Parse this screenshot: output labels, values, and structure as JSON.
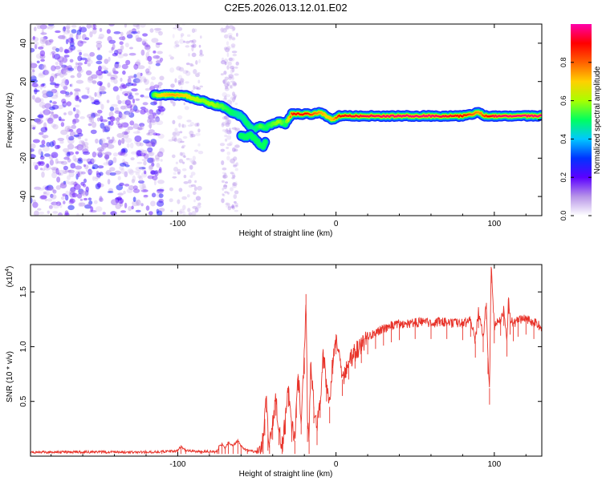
{
  "figure_title": "C2E5.2026.013.12.01.E02",
  "chart_data": [
    {
      "type": "heatmap",
      "title": "C2E5.2026.013.12.01.E02",
      "xlabel": "Height of straight line (km)",
      "ylabel": "Frequency (Hz)",
      "xlim": [
        -193,
        130
      ],
      "ylim": [
        -50,
        50
      ],
      "x_ticks": [
        -100,
        0,
        100
      ],
      "y_ticks": [
        -40,
        -20,
        0,
        20,
        40
      ],
      "x_tick_labels": [
        "-100",
        "0",
        "100"
      ],
      "y_tick_labels": [
        "-40",
        "-20",
        "0",
        "20",
        "40"
      ],
      "colorbar": {
        "label": "Normalized spectral amplitude",
        "range": [
          0,
          1
        ],
        "ticks": [
          0,
          0.2,
          0.4,
          0.6,
          0.8
        ],
        "tick_labels": [
          "0.0",
          "0.2",
          "0.4",
          "0.6",
          "0.8"
        ],
        "colormap": [
          "#ffffff",
          "#b794e8",
          "#5b00ff",
          "#0033ff",
          "#00c8ff",
          "#00ff60",
          "#a8ff00",
          "#ffd000",
          "#ff6000",
          "#ff0000",
          "#ff00aa"
        ]
      },
      "noise_region_x": [
        -193,
        -110
      ],
      "sparse_noise_bands_x": [
        [
          -105,
          -85
        ],
        [
          -72,
          -62
        ]
      ],
      "ridge": {
        "x": [
          -115,
          -110,
          -103,
          -96,
          -90,
          -84,
          -78,
          -72,
          -66,
          -60,
          -56,
          -52,
          -48,
          -44,
          -40,
          -36,
          -32,
          -28,
          -26,
          -22,
          -18,
          -14,
          -10,
          -6,
          -2,
          2,
          8,
          20,
          40,
          60,
          80,
          86,
          90,
          94,
          100,
          110,
          130
        ],
        "y": [
          13,
          13,
          13,
          13,
          11,
          10,
          8,
          7,
          4,
          2,
          -2,
          -5,
          -3,
          -4,
          -2,
          -1,
          -2,
          3,
          3,
          3,
          3,
          3,
          4,
          2,
          0,
          2,
          2,
          2,
          2,
          2,
          2,
          3,
          4,
          2,
          2,
          2,
          2
        ],
        "amp": [
          0.55,
          0.7,
          0.75,
          0.7,
          0.62,
          0.58,
          0.6,
          0.55,
          0.5,
          0.45,
          0.5,
          0.45,
          0.55,
          0.5,
          0.55,
          0.6,
          0.5,
          0.85,
          0.9,
          0.9,
          0.88,
          0.8,
          0.75,
          0.7,
          0.72,
          0.9,
          0.92,
          0.95,
          0.97,
          0.97,
          0.9,
          0.8,
          0.75,
          0.85,
          0.95,
          0.97,
          0.97
        ]
      },
      "ridge_branch": {
        "x": [
          -60,
          -57,
          -54,
          -51,
          -48,
          -46,
          -44
        ],
        "y": [
          -8,
          -9,
          -8,
          -10,
          -13,
          -14,
          -11
        ]
      }
    },
    {
      "type": "line",
      "xlabel": "Height of straight line (km)",
      "ylabel": "SNR (10 * v/v)",
      "y_scale_label": "(x10",
      "y_scale_exponent": "4",
      "y_scale_suffix": ")",
      "xlim": [
        -193,
        130
      ],
      "ylim": [
        0,
        17500
      ],
      "x_ticks": [
        -100,
        0,
        100
      ],
      "y_ticks": [
        5000,
        10000,
        15000
      ],
      "x_tick_labels": [
        "-100",
        "0",
        "100"
      ],
      "y_tick_labels": [
        "0.5",
        "1.0",
        "1.5"
      ],
      "series": [
        {
          "name": "SNR",
          "color": "#e8332a",
          "x": [
            -193,
            -160,
            -130,
            -110,
            -100,
            -98,
            -95,
            -85,
            -80,
            -75,
            -74,
            -72,
            -70,
            -68,
            -65,
            -62,
            -60,
            -56,
            -50,
            -46,
            -45,
            -44,
            -43,
            -42,
            -40,
            -38,
            -36,
            -34,
            -32,
            -30,
            -28,
            -26,
            -25,
            -24,
            -22,
            -20,
            -19,
            -18,
            -17,
            -16,
            -14,
            -12,
            -10,
            -8,
            -6,
            -4,
            -2,
            0,
            4,
            8,
            12,
            16,
            20,
            25,
            30,
            35,
            40,
            50,
            60,
            70,
            80,
            85,
            88,
            90,
            93,
            95,
            96,
            97,
            98,
            100,
            104,
            106,
            108,
            109,
            110,
            112,
            115,
            120,
            125,
            130
          ],
          "y": [
            350,
            380,
            360,
            400,
            500,
            900,
            500,
            400,
            420,
            400,
            900,
            1100,
            700,
            1300,
            1000,
            1400,
            900,
            500,
            400,
            1500,
            3400,
            5500,
            2000,
            1000,
            3000,
            5200,
            2500,
            900,
            3500,
            6000,
            2800,
            1400,
            5000,
            7500,
            3500,
            9000,
            14800,
            2800,
            1500,
            8500,
            4500,
            2500,
            5000,
            9500,
            6500,
            4500,
            9000,
            10800,
            7000,
            8500,
            9500,
            10000,
            10800,
            11300,
            11600,
            11900,
            12100,
            12200,
            12200,
            12200,
            12100,
            12400,
            10500,
            13200,
            11000,
            14000,
            9000,
            6200,
            17300,
            11800,
            12500,
            13400,
            10600,
            14500,
            12600,
            12000,
            12400,
            12600,
            12200,
            11800
          ]
        }
      ]
    }
  ]
}
